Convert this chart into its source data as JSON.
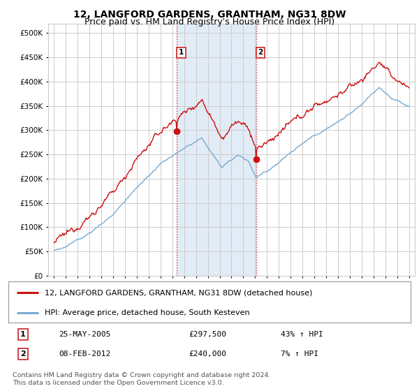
{
  "title": "12, LANGFORD GARDENS, GRANTHAM, NG31 8DW",
  "subtitle": "Price paid vs. HM Land Registry's House Price Index (HPI)",
  "ytick_values": [
    0,
    50000,
    100000,
    150000,
    200000,
    250000,
    300000,
    350000,
    400000,
    450000,
    500000
  ],
  "ylim": [
    0,
    520000
  ],
  "xlim_start": 1994.5,
  "xlim_end": 2025.5,
  "xtick_years": [
    1995,
    1996,
    1997,
    1998,
    1999,
    2000,
    2001,
    2002,
    2003,
    2004,
    2005,
    2006,
    2007,
    2008,
    2009,
    2010,
    2011,
    2012,
    2013,
    2014,
    2015,
    2016,
    2017,
    2018,
    2019,
    2020,
    2021,
    2022,
    2023,
    2024,
    2025
  ],
  "sale1_x": 2005.39,
  "sale1_y": 297500,
  "sale2_x": 2012.1,
  "sale2_y": 240000,
  "sale1_label": "1",
  "sale2_label": "2",
  "vline_color": "#dd4444",
  "vline_style": ":",
  "shaded_color": "#cfe0f0",
  "shaded_alpha": 0.6,
  "red_line_color": "#cc1111",
  "blue_line_color": "#7aaace",
  "legend_line1": "12, LANGFORD GARDENS, GRANTHAM, NG31 8DW (detached house)",
  "legend_line2": "HPI: Average price, detached house, South Kesteven",
  "table_row1_num": "1",
  "table_row1_date": "25-MAY-2005",
  "table_row1_price": "£297,500",
  "table_row1_hpi": "43% ↑ HPI",
  "table_row2_num": "2",
  "table_row2_date": "08-FEB-2012",
  "table_row2_price": "£240,000",
  "table_row2_hpi": "7% ↑ HPI",
  "footer": "Contains HM Land Registry data © Crown copyright and database right 2024.\nThis data is licensed under the Open Government Licence v3.0.",
  "bg_color": "#ffffff",
  "grid_color": "#cccccc",
  "title_fontsize": 10,
  "subtitle_fontsize": 9,
  "tick_fontsize": 7.5,
  "legend_fontsize": 8,
  "table_fontsize": 8
}
